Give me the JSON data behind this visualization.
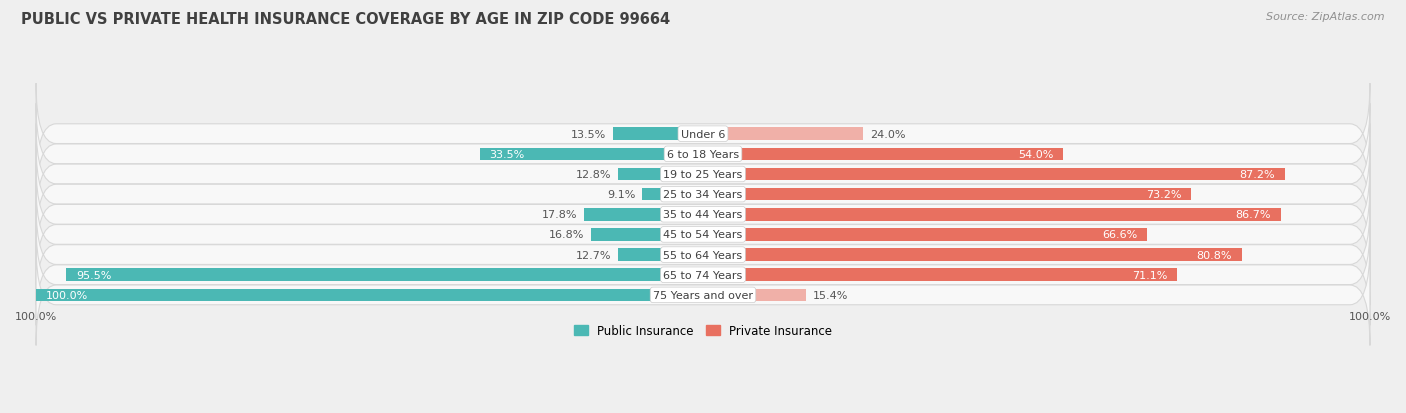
{
  "title": "PUBLIC VS PRIVATE HEALTH INSURANCE COVERAGE BY AGE IN ZIP CODE 99664",
  "source": "Source: ZipAtlas.com",
  "categories": [
    "Under 6",
    "6 to 18 Years",
    "19 to 25 Years",
    "25 to 34 Years",
    "35 to 44 Years",
    "45 to 54 Years",
    "55 to 64 Years",
    "65 to 74 Years",
    "75 Years and over"
  ],
  "public_values": [
    13.5,
    33.5,
    12.8,
    9.1,
    17.8,
    16.8,
    12.7,
    95.5,
    100.0
  ],
  "private_values": [
    24.0,
    54.0,
    87.2,
    73.2,
    86.7,
    66.6,
    80.8,
    71.1,
    15.4
  ],
  "public_color": "#4bb8b4",
  "private_color_strong": "#e87060",
  "private_color_light": "#f0b0a8",
  "bg_color": "#efefef",
  "row_bg_color": "#f8f8f8",
  "row_edge_color": "#d8d8d8",
  "title_color": "#404040",
  "source_color": "#909090",
  "dark_label_color": "#555555",
  "white_label_color": "#ffffff",
  "center_label_color": "#404040",
  "bar_height": 0.62,
  "xlim_left": -100,
  "xlim_right": 100,
  "figsize": [
    14.06,
    4.14
  ],
  "dpi": 100,
  "private_threshold": 30,
  "public_inside_threshold": 20
}
